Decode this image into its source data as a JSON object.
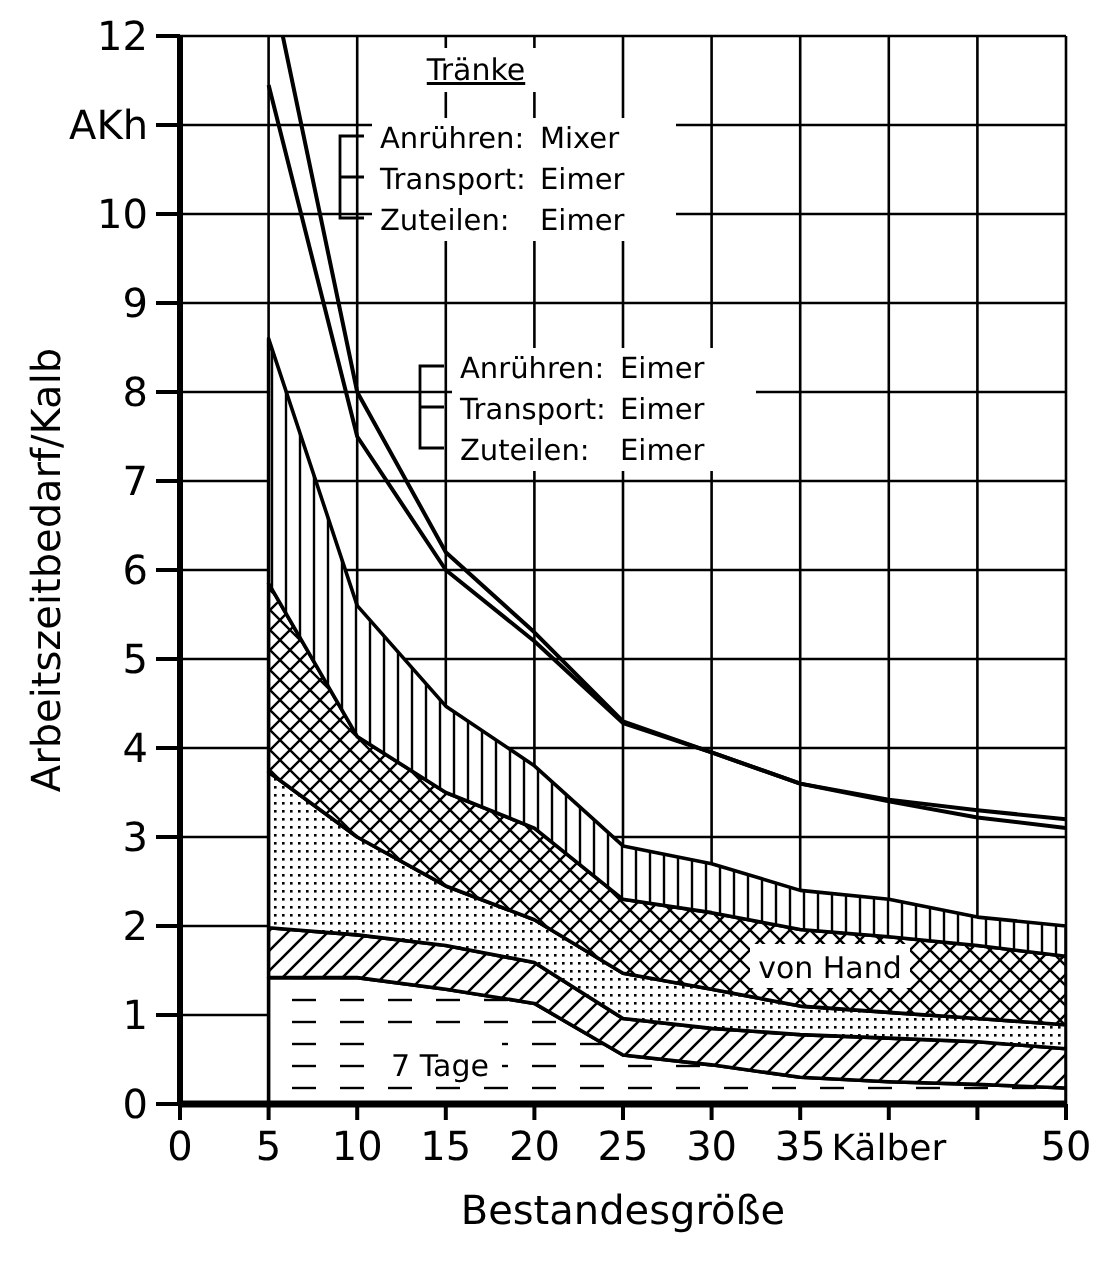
{
  "chart_data": {
    "type": "area",
    "stacked": true,
    "xlabel": "Bestandesgröße",
    "ylabel": "Arbeitszeitbedarf/Kalb",
    "x": [
      5,
      10,
      15,
      20,
      25,
      30,
      35,
      40,
      45,
      50
    ],
    "xlim": [
      0,
      50
    ],
    "xticks": [
      0,
      5,
      10,
      15,
      20,
      25,
      30,
      35,
      {
        "value": 40,
        "label": "Kälber"
      },
      {
        "value": 45,
        "label": null
      },
      50
    ],
    "ylim": [
      0,
      12
    ],
    "yticks": [
      0,
      1,
      2,
      3,
      4,
      5,
      6,
      7,
      8,
      9,
      10,
      {
        "value": 11,
        "label": "AKh"
      },
      12
    ],
    "grid": true,
    "series": [
      {
        "color": "#000000",
        "values": [
          1.42,
          1.42,
          1.29,
          1.13,
          0.55,
          0.44,
          0.3,
          0.25,
          0.22,
          0.18
        ]
      },
      {
        "color": "#000000",
        "values": [
          0.56,
          0.48,
          0.49,
          0.46,
          0.41,
          0.41,
          0.48,
          0.49,
          0.48,
          0.44
        ]
      },
      {
        "color": "#000000",
        "values": [
          1.75,
          1.1,
          0.67,
          0.48,
          0.51,
          0.44,
          0.32,
          0.29,
          0.26,
          0.27
        ]
      },
      {
        "color": "#000000",
        "values": [
          2.12,
          1.13,
          1.05,
          1.03,
          0.83,
          0.86,
          0.86,
          0.85,
          0.82,
          0.77
        ]
      },
      {
        "color": "#000000",
        "values": [
          2.75,
          1.47,
          0.97,
          0.7,
          0.6,
          0.55,
          0.44,
          0.42,
          0.32,
          0.34
        ]
      },
      {
        "type": "line",
        "color": "#000000",
        "x": [
          5,
          10,
          15,
          20,
          25,
          30,
          35,
          40,
          45,
          50
        ],
        "values": [
          11.45,
          7.5,
          6.0,
          5.2,
          4.28,
          3.95,
          3.6,
          3.4,
          3.22,
          3.1
        ]
      },
      {
        "type": "line",
        "color": "#000000",
        "x": [
          5.8,
          10,
          15,
          20,
          25,
          30,
          35,
          40,
          45,
          50
        ],
        "values": [
          12,
          8.0,
          6.2,
          5.3,
          4.3,
          3.95,
          3.6,
          3.42,
          3.3,
          3.2
        ]
      }
    ],
    "annotations": [
      "Tränke",
      "Anrühren: Mixer",
      "Transport: Eimer",
      "Zuteilen: Eimer",
      "Anrühren: Eimer",
      "Transport: Eimer",
      "Zuteilen: Eimer",
      "von Hand",
      "7 Tage"
    ]
  }
}
